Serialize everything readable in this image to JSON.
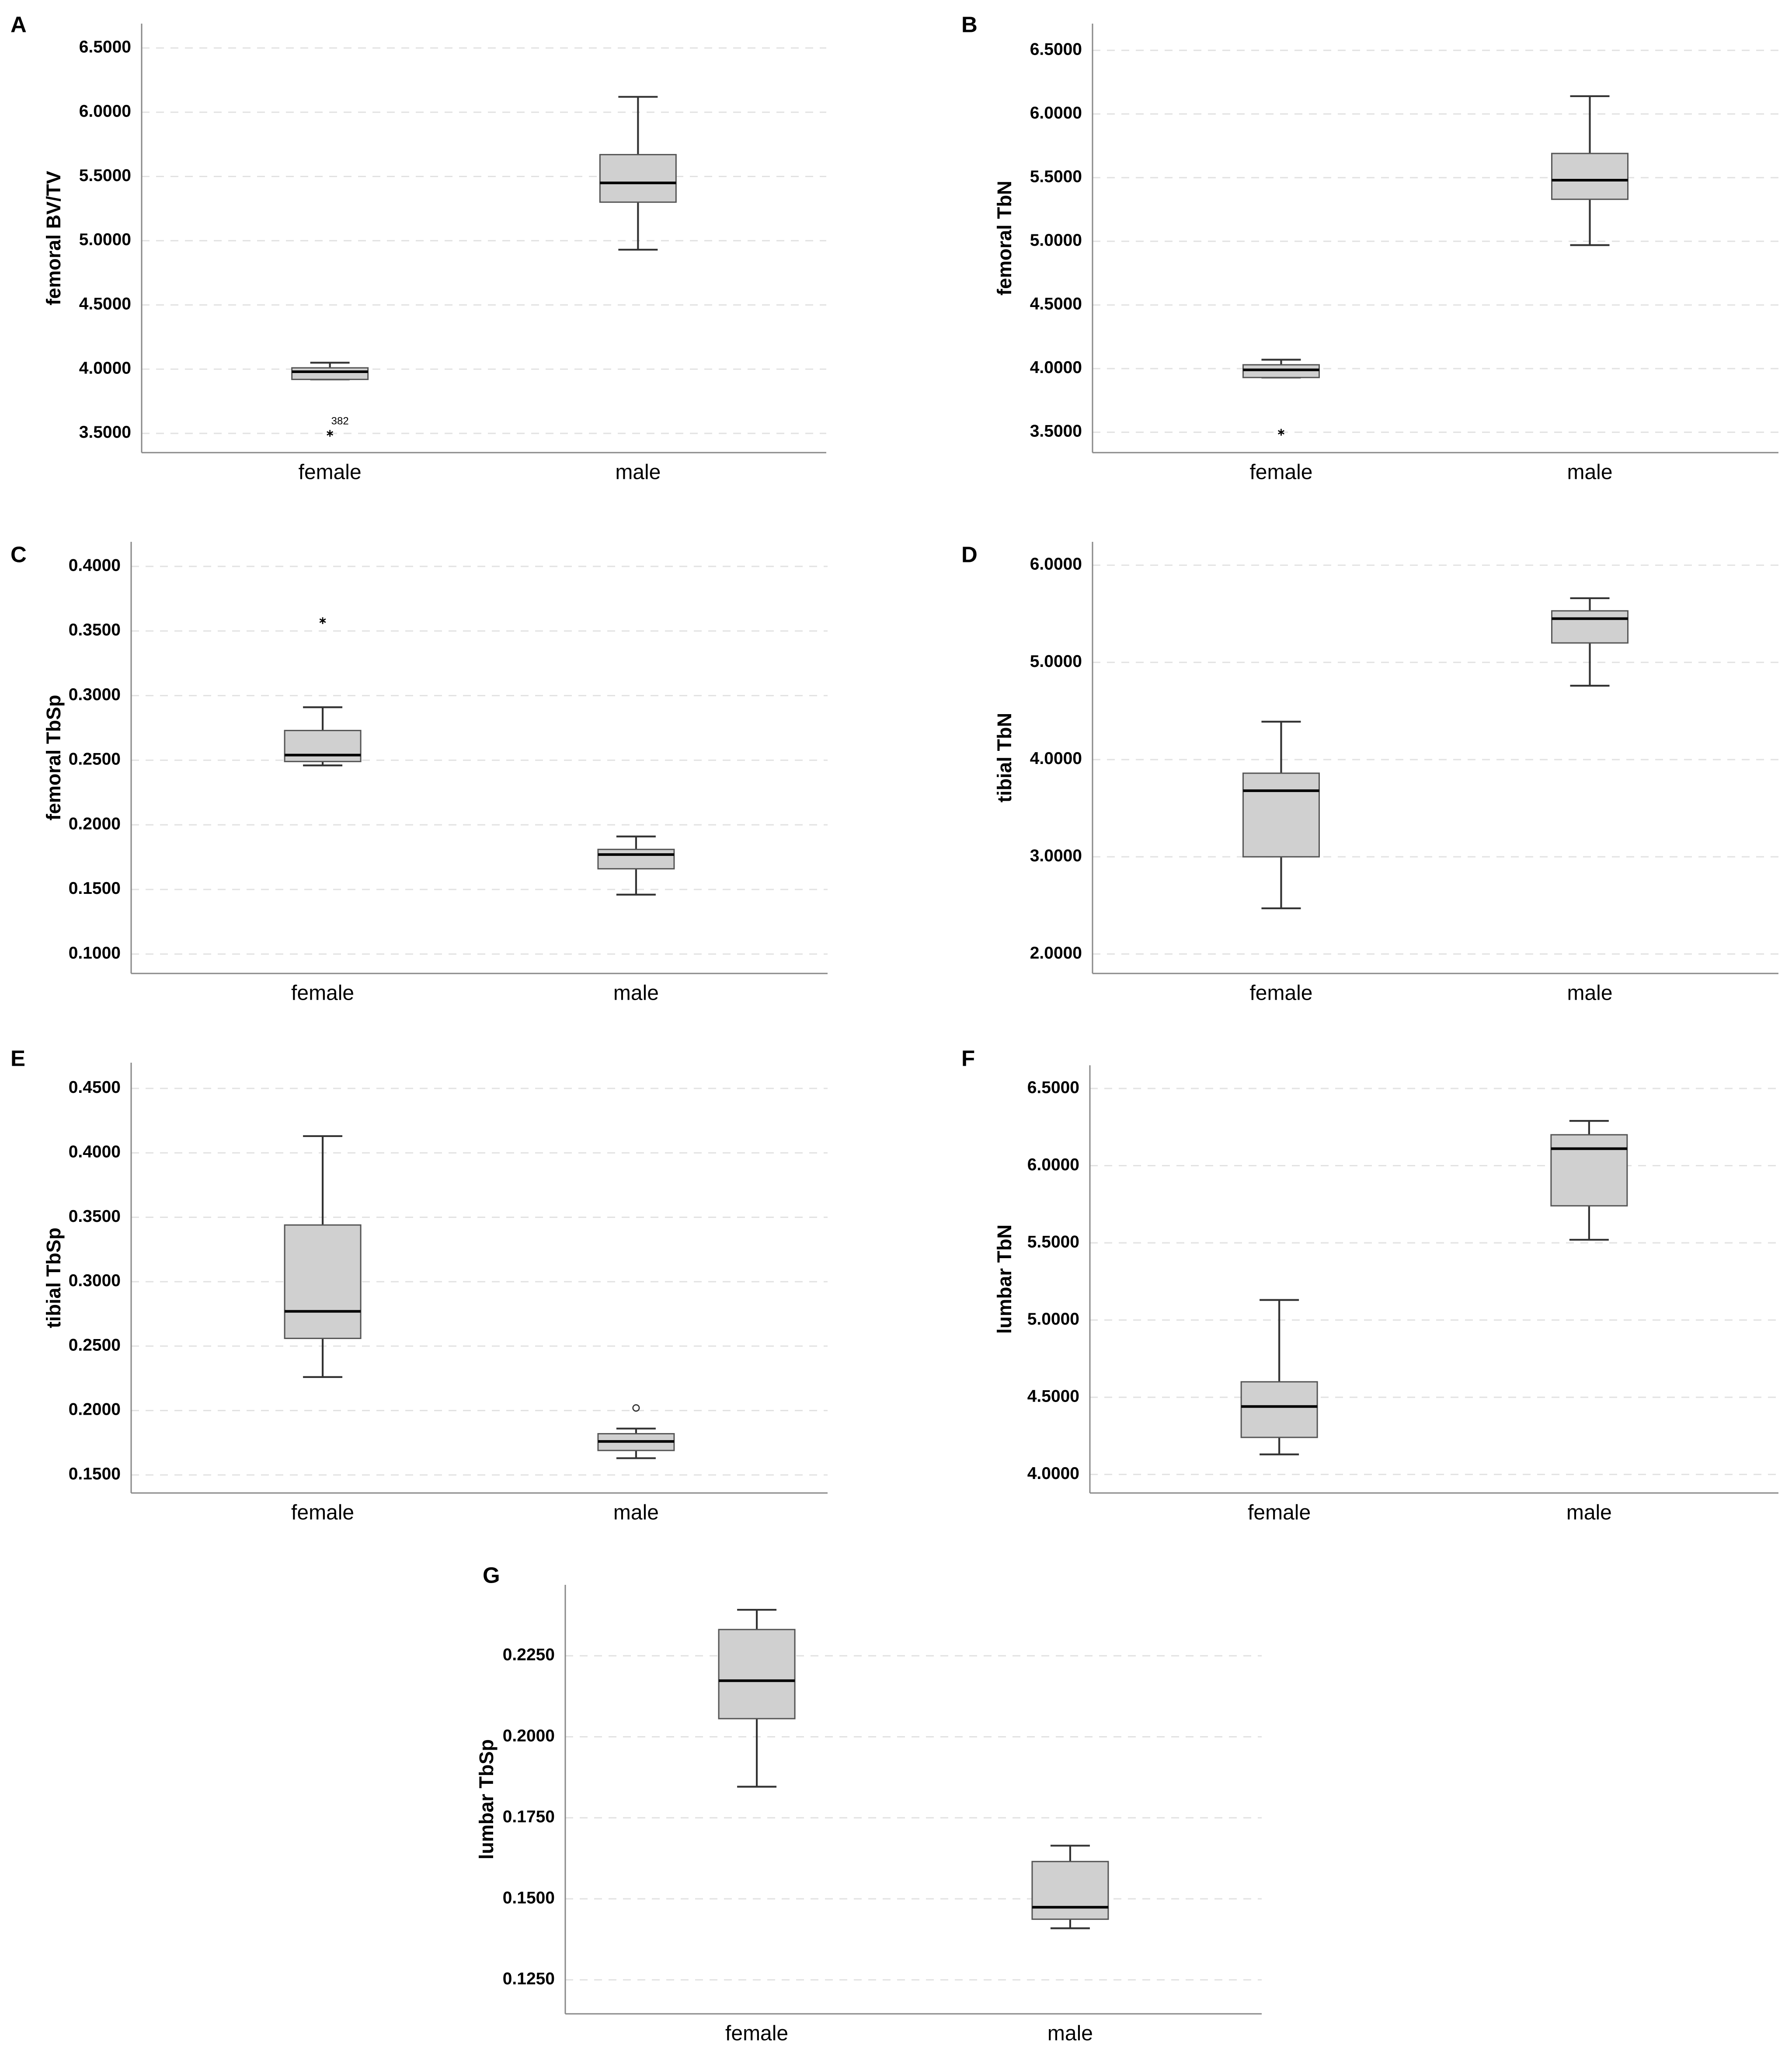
{
  "chart_data": [
    {
      "type": "box",
      "panel": "A",
      "ylabel": "femoral  BV/TV",
      "categories": [
        "female",
        "male"
      ],
      "boxes": [
        {
          "min": 3.92,
          "q1": 3.92,
          "median": 3.98,
          "q3": 4.01,
          "max": 4.05,
          "outliers": [
            {
              "value": 3.5,
              "label": "382",
              "extreme": true
            }
          ]
        },
        {
          "min": 4.93,
          "q1": 5.3,
          "median": 5.45,
          "q3": 5.67,
          "max": 6.12,
          "outliers": []
        }
      ],
      "ylim": [
        3.35,
        6.69
      ],
      "color": "#d0d0d0",
      "grid": true,
      "yticks": [
        {
          "value": 3.5,
          "label": "3.5000"
        },
        {
          "value": 4.0,
          "label": "4.0000"
        },
        {
          "value": 4.5,
          "label": "4.5000"
        },
        {
          "value": 5.0,
          "label": "5.0000"
        },
        {
          "value": 5.5,
          "label": "5.5000"
        },
        {
          "value": 6.0,
          "label": "6.0000"
        },
        {
          "value": 6.5,
          "label": "6.5000"
        }
      ]
    },
    {
      "type": "box",
      "panel": "B",
      "ylabel": "femoral  TbN",
      "categories": [
        "female",
        "male"
      ],
      "boxes": [
        {
          "min": 3.93,
          "q1": 3.93,
          "median": 3.99,
          "q3": 4.03,
          "max": 4.07,
          "outliers": [
            {
              "value": 3.5,
              "extreme": true
            }
          ]
        },
        {
          "min": 4.97,
          "q1": 5.33,
          "median": 5.48,
          "q3": 5.69,
          "max": 6.14,
          "outliers": []
        }
      ],
      "ylim": [
        3.34,
        6.71
      ],
      "color": "#d0d0d0",
      "grid": true,
      "yticks": [
        {
          "value": 3.5,
          "label": "3.5000"
        },
        {
          "value": 4.0,
          "label": "4.0000"
        },
        {
          "value": 4.5,
          "label": "4.5000"
        },
        {
          "value": 5.0,
          "label": "5.0000"
        },
        {
          "value": 5.5,
          "label": "5.5000"
        },
        {
          "value": 6.0,
          "label": "6.0000"
        },
        {
          "value": 6.5,
          "label": "6.5000"
        }
      ]
    },
    {
      "type": "box",
      "panel": "C",
      "ylabel": "femoral TbSp",
      "categories": [
        "female",
        "male"
      ],
      "boxes": [
        {
          "min": 0.246,
          "q1": 0.249,
          "median": 0.254,
          "q3": 0.273,
          "max": 0.291,
          "outliers": [
            {
              "value": 0.358,
              "extreme": true
            }
          ]
        },
        {
          "min": 0.146,
          "q1": 0.166,
          "median": 0.177,
          "q3": 0.181,
          "max": 0.191,
          "outliers": []
        }
      ],
      "ylim": [
        0.085,
        0.419
      ],
      "color": "#d0d0d0",
      "grid": true,
      "yticks": [
        {
          "value": 0.1,
          "label": "0.1000"
        },
        {
          "value": 0.15,
          "label": "0.1500"
        },
        {
          "value": 0.2,
          "label": "0.2000"
        },
        {
          "value": 0.25,
          "label": "0.2500"
        },
        {
          "value": 0.3,
          "label": "0.3000"
        },
        {
          "value": 0.35,
          "label": "0.3500"
        },
        {
          "value": 0.4,
          "label": "0.4000"
        }
      ]
    },
    {
      "type": "box",
      "panel": "D",
      "ylabel": "tibial  TbN",
      "categories": [
        "female",
        "male"
      ],
      "boxes": [
        {
          "min": 2.47,
          "q1": 3.0,
          "median": 3.68,
          "q3": 3.86,
          "max": 4.39,
          "outliers": []
        },
        {
          "min": 4.76,
          "q1": 5.2,
          "median": 5.45,
          "q3": 5.53,
          "max": 5.66,
          "outliers": []
        }
      ],
      "ylim": [
        1.8,
        6.24
      ],
      "color": "#d0d0d0",
      "grid": true,
      "yticks": [
        {
          "value": 2,
          "label": "2.0000"
        },
        {
          "value": 3,
          "label": "3.0000"
        },
        {
          "value": 4,
          "label": "4.0000"
        },
        {
          "value": 5,
          "label": "5.0000"
        },
        {
          "value": 6,
          "label": "6.0000"
        }
      ]
    },
    {
      "type": "box",
      "panel": "E",
      "ylabel": "tibial  TbSp",
      "categories": [
        "female",
        "male"
      ],
      "boxes": [
        {
          "min": 0.226,
          "q1": 0.256,
          "median": 0.277,
          "q3": 0.344,
          "max": 0.413,
          "outliers": []
        },
        {
          "min": 0.163,
          "q1": 0.169,
          "median": 0.176,
          "q3": 0.182,
          "max": 0.186,
          "outliers": [
            {
              "value": 0.202,
              "extreme": false
            }
          ]
        }
      ],
      "ylim": [
        0.136,
        0.47
      ],
      "color": "#d0d0d0",
      "grid": true,
      "yticks": [
        {
          "value": 0.15,
          "label": "0.1500"
        },
        {
          "value": 0.2,
          "label": "0.2000"
        },
        {
          "value": 0.25,
          "label": "0.2500"
        },
        {
          "value": 0.3,
          "label": "0.3000"
        },
        {
          "value": 0.35,
          "label": "0.3500"
        },
        {
          "value": 0.4,
          "label": "0.4000"
        },
        {
          "value": 0.45,
          "label": "0.4500"
        }
      ]
    },
    {
      "type": "box",
      "panel": "F",
      "ylabel": "lumbar  TbN",
      "categories": [
        "female",
        "male"
      ],
      "boxes": [
        {
          "min": 4.13,
          "q1": 4.24,
          "median": 4.44,
          "q3": 4.6,
          "max": 5.13,
          "outliers": []
        },
        {
          "min": 5.52,
          "q1": 5.74,
          "median": 6.11,
          "q3": 6.2,
          "max": 6.29,
          "outliers": []
        }
      ],
      "ylim": [
        3.88,
        6.65
      ],
      "color": "#d0d0d0",
      "grid": true,
      "yticks": [
        {
          "value": 4.0,
          "label": "4.0000"
        },
        {
          "value": 4.5,
          "label": "4.5000"
        },
        {
          "value": 5.0,
          "label": "5.0000"
        },
        {
          "value": 5.5,
          "label": "5.5000"
        },
        {
          "value": 6.0,
          "label": "6.0000"
        },
        {
          "value": 6.5,
          "label": "6.5000"
        }
      ]
    },
    {
      "type": "box",
      "panel": "G",
      "ylabel": "lumbar  TbSp",
      "categories": [
        "female",
        "male"
      ],
      "boxes": [
        {
          "min": 0.1846,
          "q1": 0.2056,
          "median": 0.2173,
          "q3": 0.2331,
          "max": 0.2392,
          "outliers": []
        },
        {
          "min": 0.1409,
          "q1": 0.1437,
          "median": 0.1474,
          "q3": 0.1615,
          "max": 0.1664,
          "outliers": []
        }
      ],
      "ylim": [
        0.1145,
        0.2469
      ],
      "color": "#d0d0d0",
      "grid": true,
      "yticks": [
        {
          "value": 0.125,
          "label": "0.1250"
        },
        {
          "value": 0.15,
          "label": "0.1500"
        },
        {
          "value": 0.175,
          "label": "0.1750"
        },
        {
          "value": 0.2,
          "label": "0.2000"
        },
        {
          "value": 0.225,
          "label": "0.2250"
        }
      ]
    }
  ]
}
